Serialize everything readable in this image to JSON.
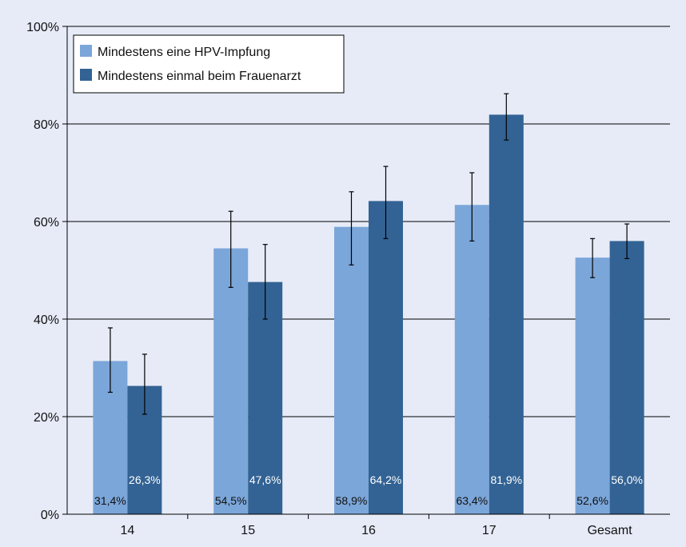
{
  "chart_data": {
    "type": "bar",
    "categories": [
      "14",
      "15",
      "16",
      "17",
      "Gesamt"
    ],
    "series": [
      {
        "name": "Mindestens eine HPV-Impfung",
        "values": [
          31.4,
          54.5,
          58.9,
          63.4,
          52.6
        ],
        "value_labels": [
          "31,4%",
          "54,5%",
          "58,9%",
          "63,4%",
          "52,6%"
        ],
        "error": [
          [
            25.0,
            38.2
          ],
          [
            46.5,
            62.1
          ],
          [
            51.1,
            66.1
          ],
          [
            56.0,
            70.0
          ],
          [
            48.5,
            56.5
          ]
        ],
        "color": "#7ba6d9"
      },
      {
        "name": "Mindestens einmal beim Frauenarzt",
        "values": [
          26.3,
          47.6,
          64.2,
          81.9,
          56.0
        ],
        "value_labels": [
          "26,3%",
          "47,6%",
          "64,2%",
          "81,9%",
          "56,0%"
        ],
        "error": [
          [
            20.5,
            32.8
          ],
          [
            40.0,
            55.3
          ],
          [
            56.5,
            71.3
          ],
          [
            76.7,
            86.2
          ],
          [
            52.4,
            59.5
          ]
        ],
        "color": "#336394"
      }
    ],
    "ylim": [
      0,
      100
    ],
    "yticks": [
      {
        "value": 0,
        "label": "0%"
      },
      {
        "value": 20,
        "label": "20%"
      },
      {
        "value": 40,
        "label": "40%"
      },
      {
        "value": 60,
        "label": "60%"
      },
      {
        "value": 80,
        "label": "80%"
      },
      {
        "value": 100,
        "label": "100%"
      }
    ],
    "grid": true,
    "legend_position": "top-left",
    "background_color": "#e6ebf7",
    "gridline_color": "#000000"
  }
}
